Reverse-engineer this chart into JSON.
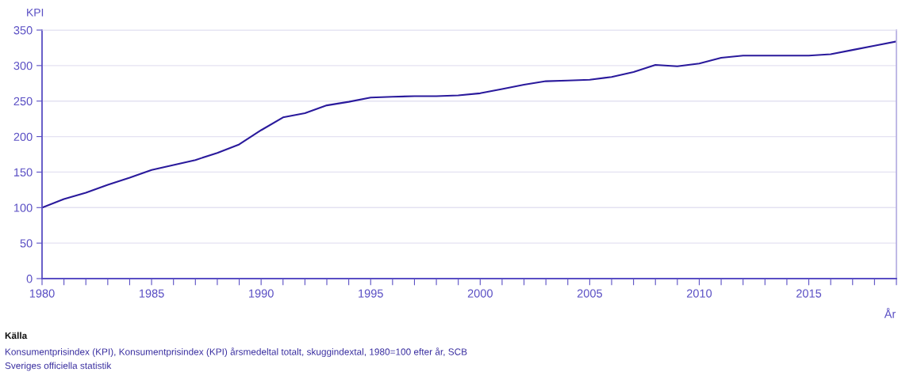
{
  "chart_data": {
    "type": "line",
    "xlabel": "År",
    "ylabel": "KPI",
    "x": [
      1980,
      1981,
      1982,
      1983,
      1984,
      1985,
      1986,
      1987,
      1988,
      1989,
      1990,
      1991,
      1992,
      1993,
      1994,
      1995,
      1996,
      1997,
      1998,
      1999,
      2000,
      2001,
      2002,
      2003,
      2004,
      2005,
      2006,
      2007,
      2008,
      2009,
      2010,
      2011,
      2012,
      2013,
      2014,
      2015,
      2016,
      2017,
      2018,
      2019
    ],
    "series": [
      {
        "color": "#2a1a9c",
        "values": [
          100,
          112,
          121,
          132,
          142,
          153,
          160,
          167,
          177,
          189,
          209,
          227,
          233,
          244,
          249,
          255,
          256,
          257,
          257,
          258,
          261,
          267,
          273,
          278,
          279,
          280,
          284,
          291,
          301,
          299,
          303,
          311,
          314,
          314,
          314,
          314,
          316,
          322,
          328,
          334
        ]
      }
    ],
    "xlim": [
      1980,
      2019
    ],
    "xticks": [
      1980,
      {
        "value": 1981,
        "label": null
      },
      {
        "value": 1982,
        "label": null
      },
      {
        "value": 1983,
        "label": null
      },
      {
        "value": 1984,
        "label": null
      },
      1985,
      {
        "value": 1986,
        "label": null
      },
      {
        "value": 1987,
        "label": null
      },
      {
        "value": 1988,
        "label": null
      },
      {
        "value": 1989,
        "label": null
      },
      1990,
      {
        "value": 1991,
        "label": null
      },
      {
        "value": 1992,
        "label": null
      },
      {
        "value": 1993,
        "label": null
      },
      {
        "value": 1994,
        "label": null
      },
      1995,
      {
        "value": 1996,
        "label": null
      },
      {
        "value": 1997,
        "label": null
      },
      {
        "value": 1998,
        "label": null
      },
      {
        "value": 1999,
        "label": null
      },
      2000,
      {
        "value": 2001,
        "label": null
      },
      {
        "value": 2002,
        "label": null
      },
      {
        "value": 2003,
        "label": null
      },
      {
        "value": 2004,
        "label": null
      },
      2005,
      {
        "value": 2006,
        "label": null
      },
      {
        "value": 2007,
        "label": null
      },
      {
        "value": 2008,
        "label": null
      },
      {
        "value": 2009,
        "label": null
      },
      2010,
      {
        "value": 2011,
        "label": null
      },
      {
        "value": 2012,
        "label": null
      },
      {
        "value": 2013,
        "label": null
      },
      {
        "value": 2014,
        "label": null
      },
      2015,
      {
        "value": 2016,
        "label": null
      },
      {
        "value": 2017,
        "label": null
      },
      {
        "value": 2018,
        "label": null
      },
      {
        "value": 2019,
        "label": null
      }
    ],
    "ylim": [
      0,
      350
    ],
    "yticks": [
      0,
      50,
      100,
      150,
      200,
      250,
      300,
      350
    ],
    "grid": "y",
    "marker": "none",
    "line_style": "solid",
    "annotations": [
      "Källa",
      "Konsumentprisindex (KPI), Konsumentprisindex (KPI) årsmedeltal totalt, skuggindextal, 1980=100 efter år, SCB",
      "Sveriges officiella statistik"
    ]
  }
}
